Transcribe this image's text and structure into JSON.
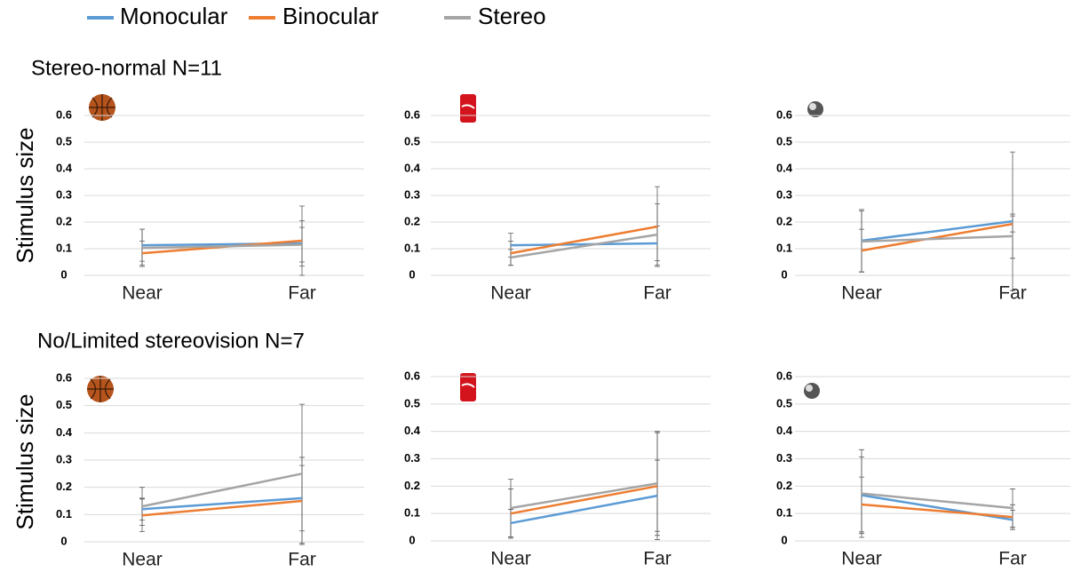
{
  "chart_data": [
    {
      "type": "line",
      "title": "Stereo-normal N=11",
      "ylabel": "Stimulus size",
      "categories": [
        "Near",
        "Far"
      ],
      "series": [
        {
          "name": "Monocular",
          "color": "#5b9bd5",
          "values": [
            0.113,
            0.12
          ],
          "errors": [
            0.06,
            0.085
          ]
        },
        {
          "name": "Binocular",
          "color": "#ed7d31",
          "values": [
            0.083,
            0.13
          ],
          "errors": [
            0.045,
            0.13
          ]
        },
        {
          "name": "Stereo",
          "color": "#a5a5a5",
          "values": [
            0.103,
            0.115
          ],
          "errors": [
            0.07,
            0.065
          ]
        }
      ],
      "ylim": [
        0,
        0.6
      ],
      "yticks": [
        0,
        0.1,
        0.2,
        0.3,
        0.4,
        0.5,
        0.6
      ],
      "grid": true
    },
    {
      "type": "line",
      "categories": [
        "Near",
        "Far"
      ],
      "series": [
        {
          "color": "#5b9bd5",
          "values": [
            0.113,
            0.12
          ],
          "errors": [
            0.045,
            0.065
          ]
        },
        {
          "color": "#ed7d31",
          "values": [
            0.083,
            0.183
          ],
          "errors": [
            0.045,
            0.15
          ]
        },
        {
          "color": "#a5a5a5",
          "values": [
            0.067,
            0.153
          ],
          "errors": [
            0.03,
            0.115
          ]
        }
      ],
      "ylim": [
        0,
        0.6
      ],
      "yticks": [
        0,
        0.1,
        0.2,
        0.3,
        0.4,
        0.5,
        0.6
      ],
      "grid": true
    },
    {
      "type": "line",
      "categories": [
        "Near",
        "Far"
      ],
      "series": [
        {
          "color": "#5b9bd5",
          "values": [
            0.13,
            0.203
          ],
          "errors": [
            0.117,
            0.26
          ]
        },
        {
          "color": "#ed7d31",
          "values": [
            0.093,
            0.193
          ],
          "errors": [
            0.08,
            0.03
          ]
        },
        {
          "color": "#a5a5a5",
          "values": [
            0.127,
            0.147
          ],
          "errors": [
            0.115,
            0.083
          ]
        }
      ],
      "ylim": [
        0,
        0.6
      ],
      "yticks": [
        0,
        0.1,
        0.2,
        0.3,
        0.4,
        0.5,
        0.6
      ],
      "grid": true
    },
    {
      "type": "line",
      "title": "No/Limited stereovision N=7",
      "ylabel": "Stimulus size",
      "categories": [
        "Near",
        "Far"
      ],
      "series": [
        {
          "color": "#5b9bd5",
          "values": [
            0.12,
            0.16
          ],
          "errors": [
            0.04,
            0.12
          ]
        },
        {
          "color": "#ed7d31",
          "values": [
            0.097,
            0.15
          ],
          "errors": [
            0.06,
            0.16
          ]
        },
        {
          "color": "#a5a5a5",
          "values": [
            0.13,
            0.25
          ],
          "errors": [
            0.07,
            0.255
          ]
        }
      ],
      "ylim": [
        0,
        0.6
      ],
      "yticks": [
        0,
        0.1,
        0.2,
        0.3,
        0.4,
        0.5,
        0.6
      ],
      "grid": true
    },
    {
      "type": "line",
      "categories": [
        "Near",
        "Far"
      ],
      "series": [
        {
          "color": "#5b9bd5",
          "values": [
            0.065,
            0.165
          ],
          "errors": [
            0.05,
            0.13
          ]
        },
        {
          "color": "#ed7d31",
          "values": [
            0.1,
            0.2
          ],
          "errors": [
            0.09,
            0.195
          ]
        },
        {
          "color": "#a5a5a5",
          "values": [
            0.12,
            0.21
          ],
          "errors": [
            0.105,
            0.19
          ]
        }
      ],
      "ylim": [
        0,
        0.6
      ],
      "yticks": [
        0,
        0.1,
        0.2,
        0.3,
        0.4,
        0.5,
        0.6
      ],
      "grid": true
    },
    {
      "type": "line",
      "categories": [
        "Near",
        "Far"
      ],
      "series": [
        {
          "color": "#5b9bd5",
          "values": [
            0.167,
            0.077
          ],
          "errors": [
            0.14,
            0.035
          ]
        },
        {
          "color": "#ed7d31",
          "values": [
            0.133,
            0.087
          ],
          "errors": [
            0.1,
            0.045
          ]
        },
        {
          "color": "#a5a5a5",
          "values": [
            0.173,
            0.12
          ],
          "errors": [
            0.16,
            0.07
          ]
        }
      ],
      "ylim": [
        0,
        0.6
      ],
      "yticks": [
        0,
        0.1,
        0.2,
        0.3,
        0.4,
        0.5,
        0.6
      ],
      "grid": true
    }
  ]
}
